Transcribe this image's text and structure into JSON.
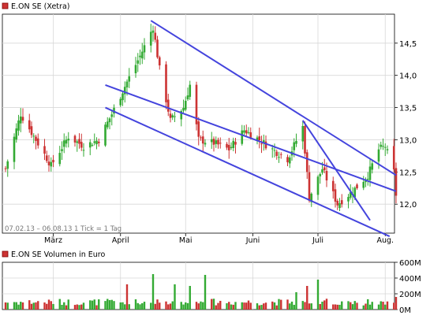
{
  "price_panel": {
    "legend_label": "E.ON SE (Xetra)",
    "legend_color": "#cc3333",
    "range_note": "07.02.13 – 06.08.13   1 Tick = 1 Tag"
  },
  "volume_panel": {
    "legend_label": "E.ON SE Volumen in Euro",
    "legend_color": "#cc3333"
  },
  "colors": {
    "up": "#33aa33",
    "down": "#cc3333",
    "trendline": "#4444dd",
    "grid": "#d8d8d8",
    "axis": "#000000"
  },
  "chart_data": [
    {
      "type": "candlestick",
      "title": "E.ON SE (Xetra)",
      "x_range": [
        "2013-02-07",
        "2013-08-06"
      ],
      "month_labels": [
        {
          "label": "März",
          "date": "2013-03-01"
        },
        {
          "label": "April",
          "date": "2013-04-01"
        },
        {
          "label": "Mai",
          "date": "2013-05-01"
        },
        {
          "label": "Juni",
          "date": "2013-06-01"
        },
        {
          "label": "Juli",
          "date": "2013-07-01"
        },
        {
          "label": "Aug.",
          "date": "2013-08-01"
        }
      ],
      "y_ticks": [
        "12,0",
        "12,5",
        "13,0",
        "13,5",
        "14,0",
        "14,5"
      ],
      "y_tick_values": [
        12.0,
        12.5,
        13.0,
        13.5,
        14.0,
        14.5
      ],
      "ylim": [
        11.55,
        14.95
      ],
      "grid": true,
      "close_anchors": [
        {
          "date": "2013-02-07",
          "close": 12.55
        },
        {
          "date": "2013-02-14",
          "close": 13.4
        },
        {
          "date": "2013-02-21",
          "close": 13.0
        },
        {
          "date": "2013-02-28",
          "close": 12.6
        },
        {
          "date": "2013-03-08",
          "close": 13.05
        },
        {
          "date": "2013-03-15",
          "close": 12.9
        },
        {
          "date": "2013-03-22",
          "close": 13.0
        },
        {
          "date": "2013-03-28",
          "close": 13.4
        },
        {
          "date": "2013-04-04",
          "close": 13.9
        },
        {
          "date": "2013-04-10",
          "close": 14.3
        },
        {
          "date": "2013-04-16",
          "close": 14.75
        },
        {
          "date": "2013-04-19",
          "close": 14.1
        },
        {
          "date": "2013-04-24",
          "close": 13.3
        },
        {
          "date": "2013-04-30",
          "close": 13.5
        },
        {
          "date": "2013-05-03",
          "close": 13.85
        },
        {
          "date": "2013-05-07",
          "close": 13.0
        },
        {
          "date": "2013-05-14",
          "close": 12.95
        },
        {
          "date": "2013-05-21",
          "close": 12.85
        },
        {
          "date": "2013-05-28",
          "close": 13.15
        },
        {
          "date": "2013-06-04",
          "close": 13.0
        },
        {
          "date": "2013-06-10",
          "close": 12.85
        },
        {
          "date": "2013-06-17",
          "close": 12.7
        },
        {
          "date": "2013-06-24",
          "close": 13.2
        },
        {
          "date": "2013-06-27",
          "close": 12.1
        },
        {
          "date": "2013-07-03",
          "close": 12.55
        },
        {
          "date": "2013-07-10",
          "close": 12.0
        },
        {
          "date": "2013-07-17",
          "close": 12.2
        },
        {
          "date": "2013-07-24",
          "close": 12.45
        },
        {
          "date": "2013-07-29",
          "close": 12.85
        },
        {
          "date": "2013-08-01",
          "close": 12.9
        },
        {
          "date": "2013-08-05",
          "close": 12.5
        },
        {
          "date": "2013-08-06",
          "close": 12.15
        }
      ],
      "trendlines": [
        {
          "from": {
            "date": "2013-03-25",
            "value": 13.85
          },
          "to": {
            "date": "2013-08-06",
            "value": 12.2
          }
        },
        {
          "from": {
            "date": "2013-04-15",
            "value": 14.85
          },
          "to": {
            "date": "2013-08-06",
            "value": 12.45
          }
        },
        {
          "from": {
            "date": "2013-03-25",
            "value": 13.5
          },
          "to": {
            "date": "2013-08-03",
            "value": 11.5
          }
        },
        {
          "from": {
            "date": "2013-06-24",
            "value": 13.3
          },
          "to": {
            "date": "2013-07-25",
            "value": 11.75
          }
        }
      ]
    },
    {
      "type": "bar",
      "title": "E.ON SE Volumen in Euro",
      "y_ticks": [
        "0M",
        "200M",
        "400M",
        "600M"
      ],
      "y_tick_values": [
        0,
        200,
        400,
        600
      ],
      "ylim": [
        0,
        600
      ],
      "unit": "Mio. Euro",
      "typical_volume": 95,
      "spikes": [
        {
          "date": "2013-04-04",
          "value": 320
        },
        {
          "date": "2013-04-16",
          "value": 450
        },
        {
          "date": "2013-04-26",
          "value": 320
        },
        {
          "date": "2013-05-03",
          "value": 300
        },
        {
          "date": "2013-05-10",
          "value": 440
        },
        {
          "date": "2013-06-26",
          "value": 300
        },
        {
          "date": "2013-07-01",
          "value": 380
        },
        {
          "date": "2013-06-21",
          "value": 220
        },
        {
          "date": "2013-08-06",
          "value": 160
        }
      ]
    }
  ]
}
